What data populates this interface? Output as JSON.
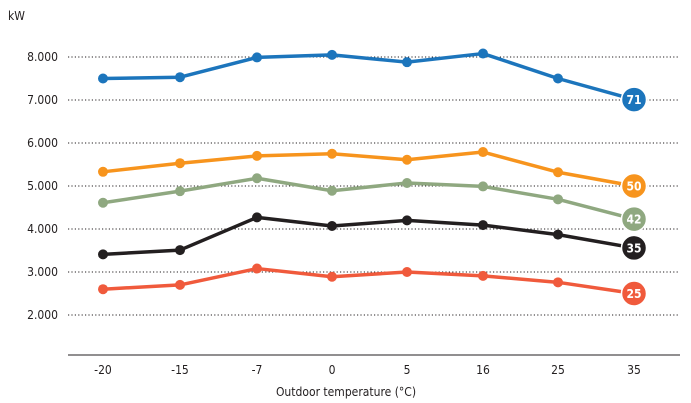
{
  "chart_data": {
    "type": "line",
    "title": "",
    "ylabel": "kW",
    "xlabel": "Outdoor temperature (°C)",
    "categories": [
      "-20",
      "-15",
      "-7",
      "0",
      "5",
      "16",
      "25",
      "35"
    ],
    "y_ticks": [
      "8.000",
      "7.000",
      "6.000",
      "5.000",
      "4.000",
      "3.000",
      "2.000"
    ],
    "ylim": [
      1000,
      8800
    ],
    "grid": "horizontal dotted",
    "series": [
      {
        "name": "71",
        "label": "71",
        "color": "#1c75bc",
        "values": [
          7500,
          7530,
          7990,
          8050,
          7880,
          8080,
          7500,
          7010
        ]
      },
      {
        "name": "50",
        "label": "50",
        "color": "#f7941d",
        "values": [
          5330,
          5530,
          5700,
          5750,
          5610,
          5790,
          5320,
          5000
        ]
      },
      {
        "name": "42",
        "label": "42",
        "color": "#8fa880",
        "values": [
          4610,
          4880,
          5180,
          4890,
          5070,
          4990,
          4690,
          4230
        ]
      },
      {
        "name": "35",
        "label": "35",
        "color": "#231f20",
        "values": [
          3410,
          3510,
          4270,
          4070,
          4200,
          4090,
          3870,
          3560
        ]
      },
      {
        "name": "25",
        "label": "25",
        "color": "#f05a3c",
        "values": [
          2600,
          2700,
          3080,
          2890,
          3000,
          2910,
          2760,
          2500
        ]
      }
    ]
  }
}
